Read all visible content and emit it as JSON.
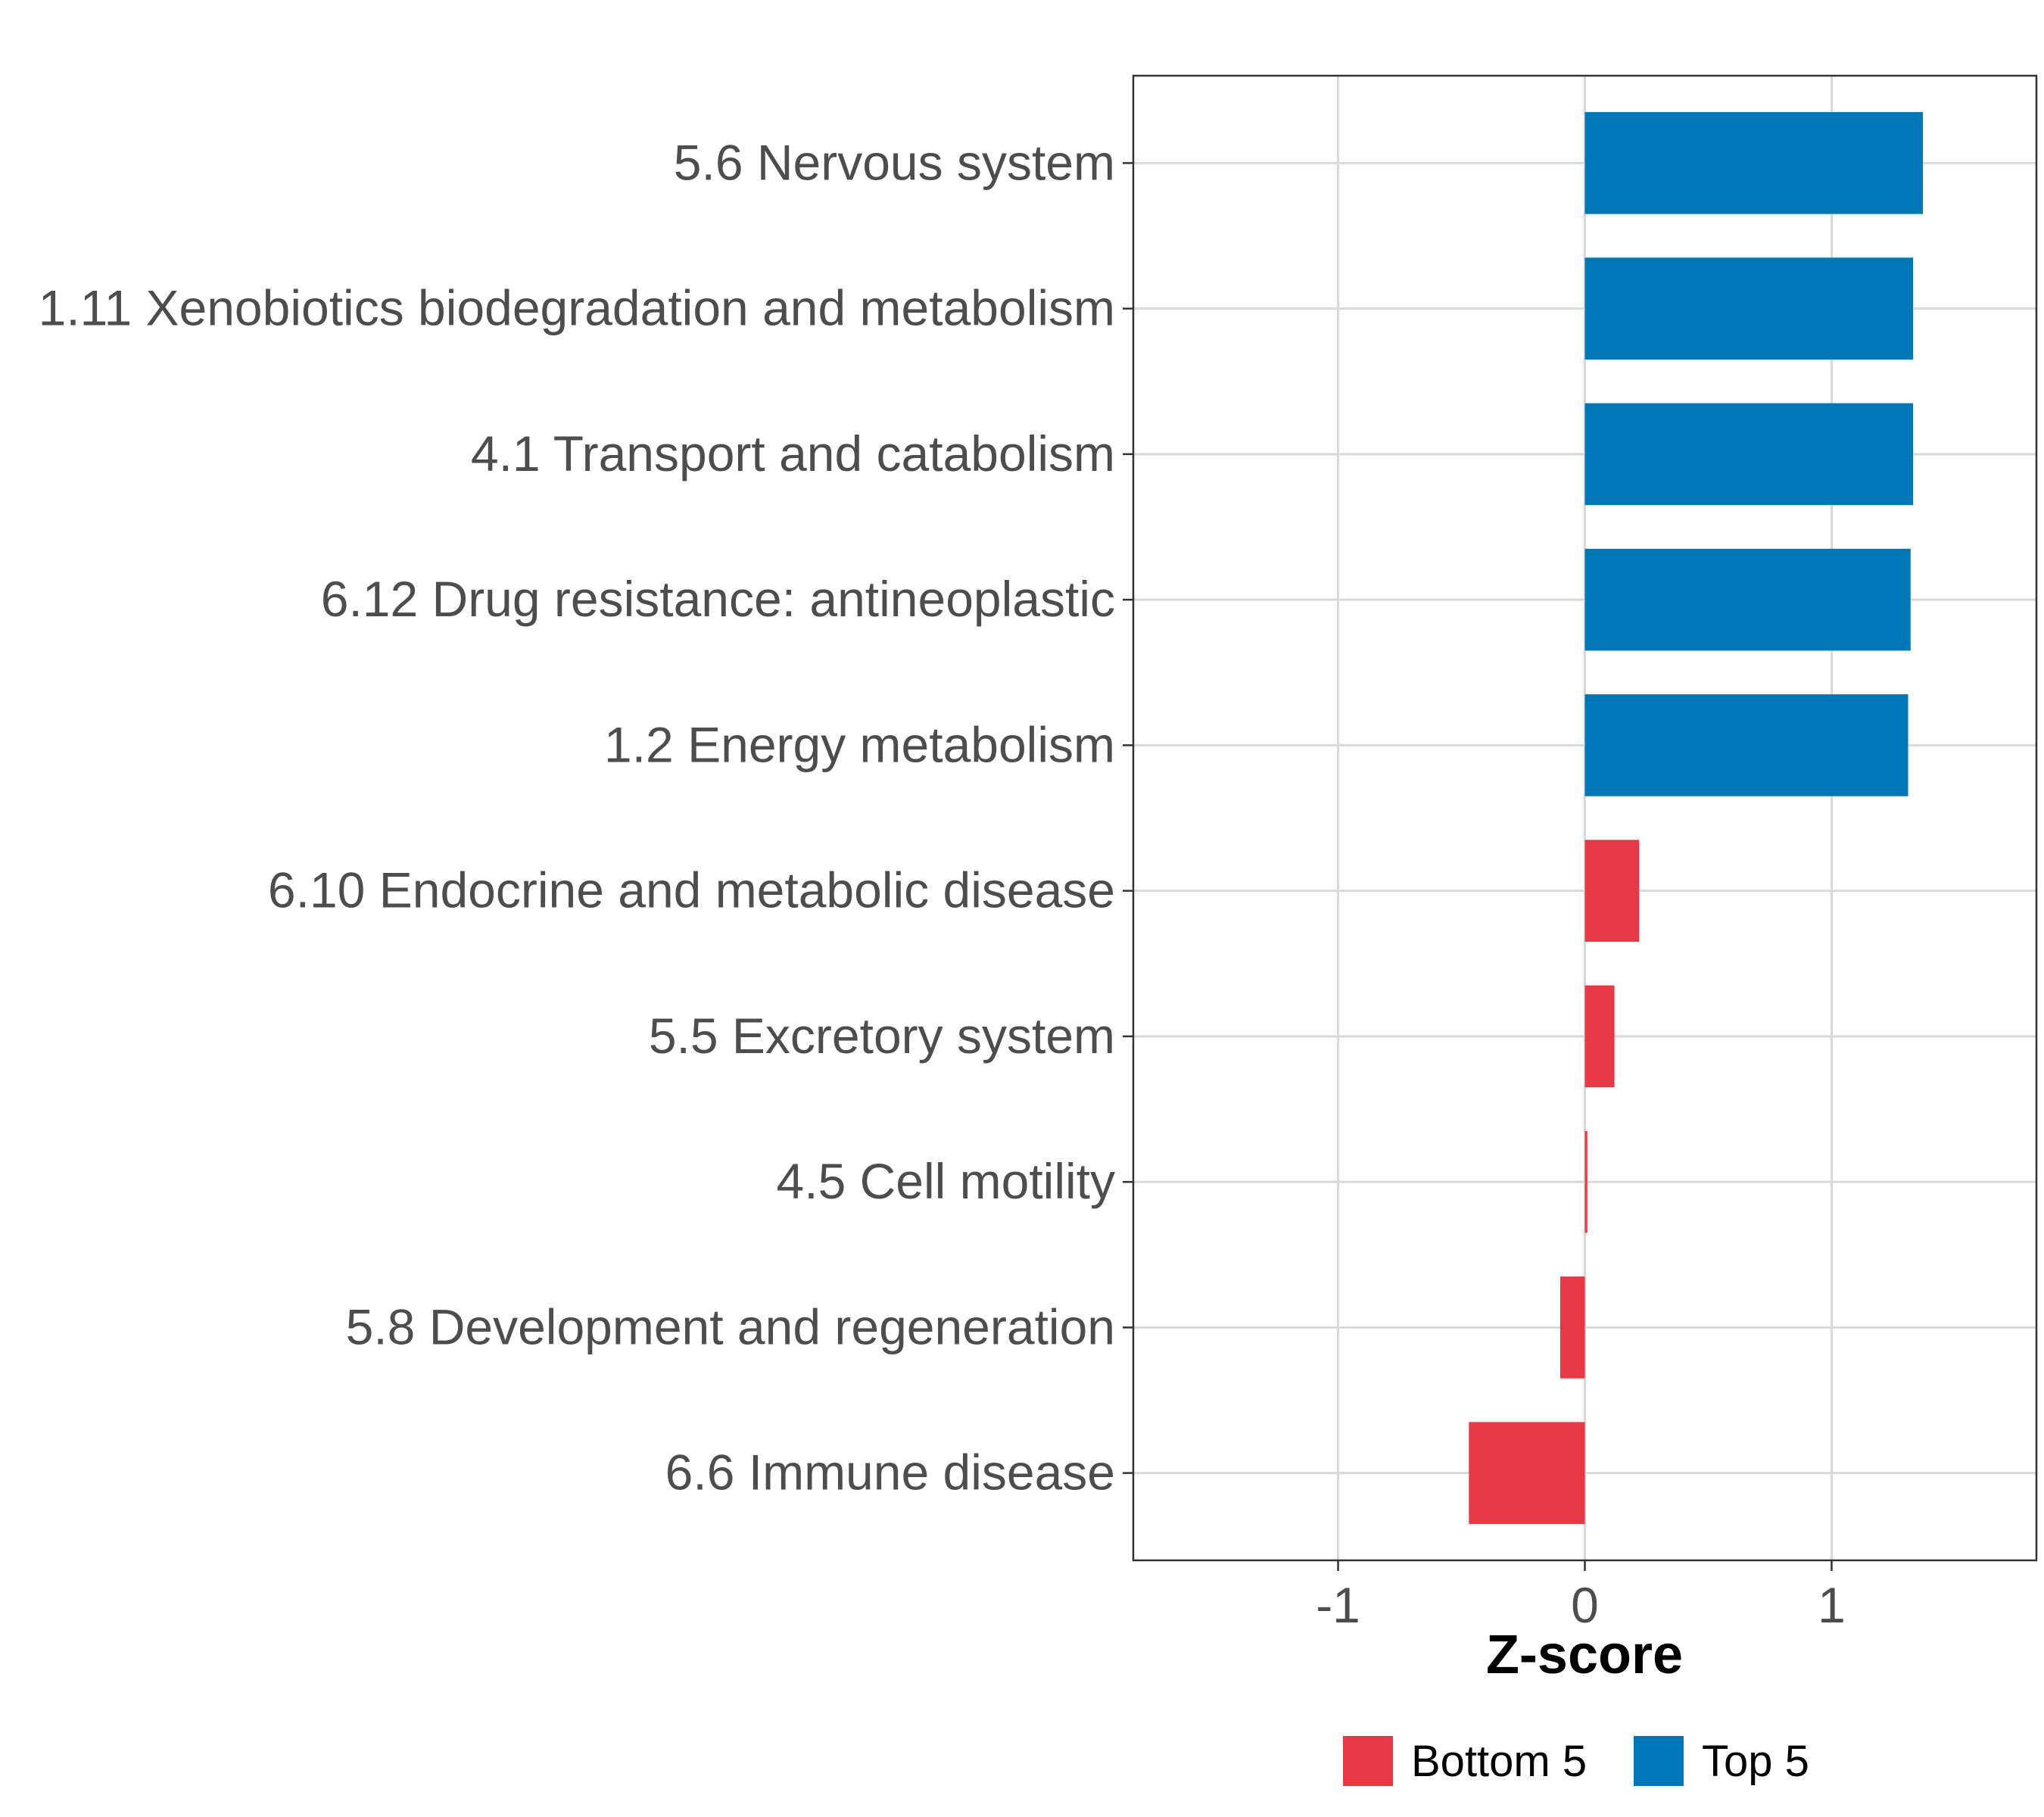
{
  "chart_data": {
    "type": "bar",
    "orientation": "horizontal",
    "xlabel": "Z-score",
    "ylabel": "",
    "xlim": [
      -1.83,
      1.83
    ],
    "x_ticks": [
      -1,
      0,
      1
    ],
    "x_tick_labels": [
      "-1",
      "0",
      "1"
    ],
    "grid": true,
    "categories": [
      "5.6 Nervous system",
      "1.11 Xenobiotics biodegradation and metabolism",
      "4.1 Transport and catabolism",
      "6.12 Drug resistance: antineoplastic",
      "1.2 Energy metabolism",
      "6.10 Endocrine and metabolic disease",
      "5.5 Excretory system",
      "4.5 Cell motility",
      "5.8 Development and regeneration",
      "6.6 Immune disease"
    ],
    "values": [
      1.37,
      1.33,
      1.33,
      1.32,
      1.31,
      0.22,
      0.12,
      0.01,
      -0.1,
      -0.47
    ],
    "groups": [
      "Top 5",
      "Top 5",
      "Top 5",
      "Top 5",
      "Top 5",
      "Bottom 5",
      "Bottom 5",
      "Bottom 5",
      "Bottom 5",
      "Bottom 5"
    ],
    "legend": {
      "position": "bottom",
      "entries": [
        {
          "name": "Bottom 5",
          "color": "#e63946"
        },
        {
          "name": "Top 5",
          "color": "#0077b6"
        }
      ]
    }
  }
}
